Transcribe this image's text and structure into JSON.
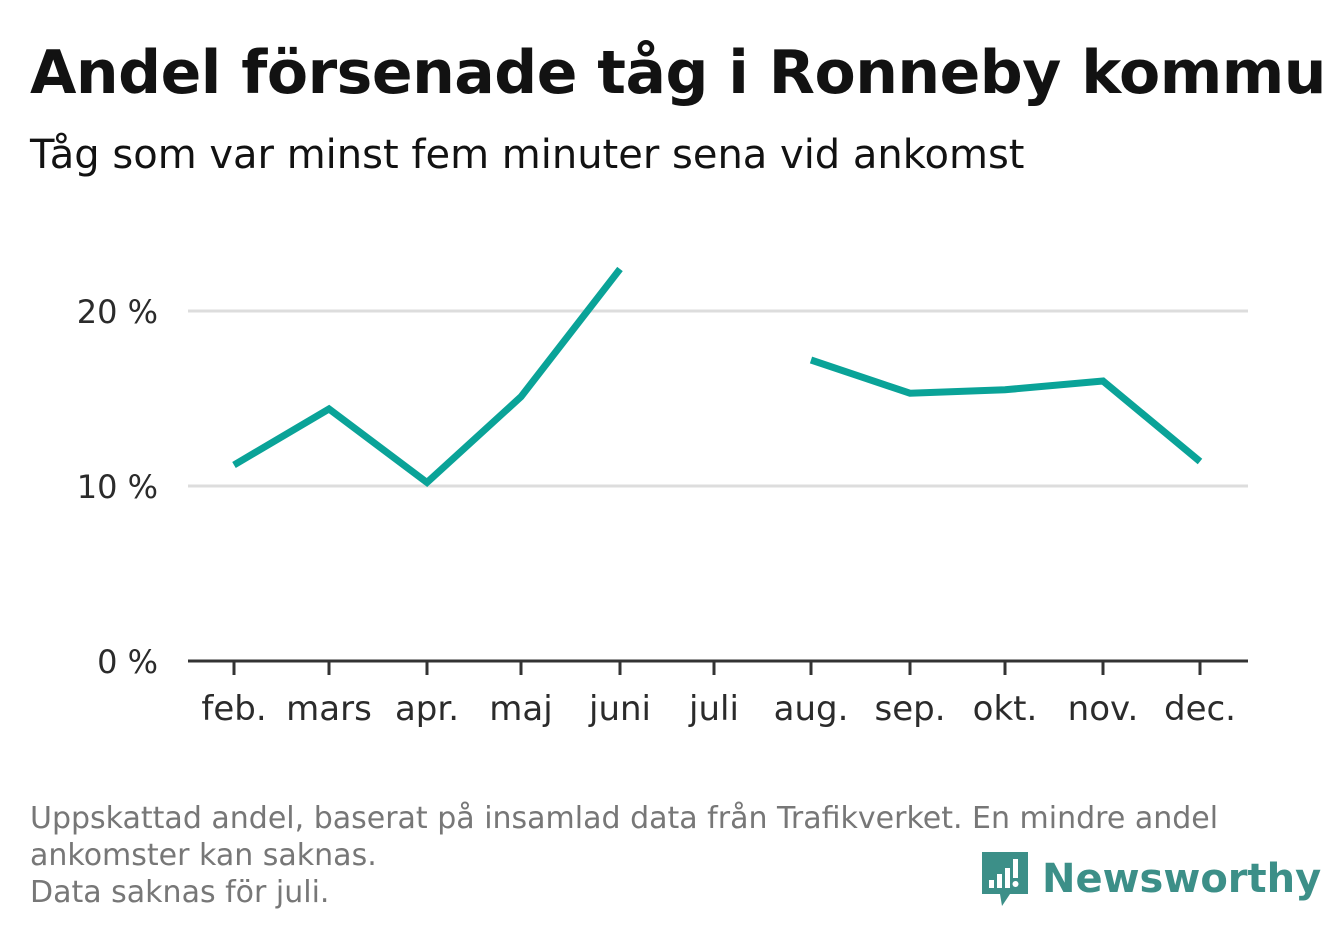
{
  "title": "Andel försenade tåg i Ronneby kommun",
  "subtitle": "Tåg som var minst fem minuter sena vid ankomst",
  "footnote": {
    "line1": "Uppskattad andel, baserat på insamlad data från Trafikverket. En mindre andel",
    "line2": "ankomster kan saknas.",
    "line3": "Data saknas för juli."
  },
  "brand": {
    "name": "Newsworthy",
    "icon": "newsworthy-logo-icon",
    "color": "#3c8f88"
  },
  "colors": {
    "line": "#0aa398",
    "grid": "#dddddd",
    "axis": "#333333"
  },
  "chart_data": {
    "type": "line",
    "categories": [
      "feb.",
      "mars",
      "apr.",
      "maj",
      "juni",
      "juli",
      "aug.",
      "sep.",
      "okt.",
      "nov.",
      "dec."
    ],
    "series": [
      {
        "values": [
          11.2,
          14.4,
          10.2,
          15.1,
          22.4,
          null,
          17.2,
          15.3,
          15.5,
          16.0,
          11.4
        ]
      }
    ],
    "yticks": [
      0,
      10,
      20
    ],
    "ytick_labels": [
      "0 %",
      "10 %",
      "20 %"
    ],
    "ylim": [
      0,
      24
    ],
    "grid": true,
    "legend": "none"
  }
}
